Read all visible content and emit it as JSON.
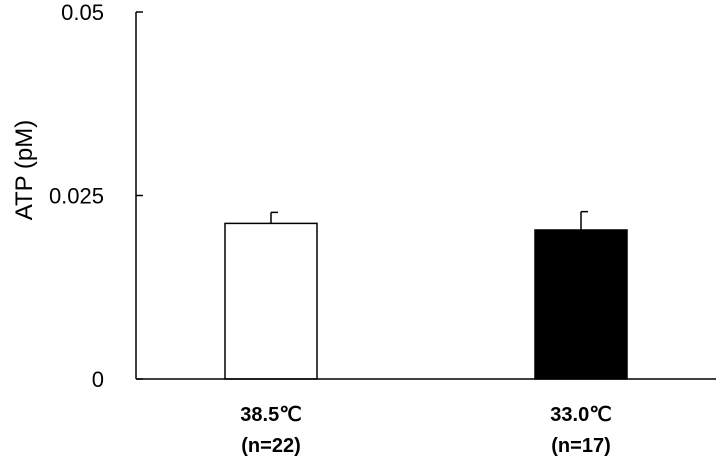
{
  "chart_data": {
    "type": "bar",
    "title": "",
    "xlabel": "",
    "ylabel": "ATP (pM)",
    "ylim": [
      0,
      0.05
    ],
    "yticks": [
      0,
      0.025,
      0.05
    ],
    "ytick_labels": [
      "0",
      "0.025",
      "0.05"
    ],
    "grid": false,
    "legend": "none",
    "categories": [
      {
        "line1": "38.5℃",
        "line2": "(n=22)"
      },
      {
        "line1": "33.0℃",
        "line2": "(n=17)"
      }
    ],
    "values": [
      0.0212,
      0.0203
    ],
    "errors": [
      0.0015,
      0.0025
    ],
    "colors": {
      "fills": [
        "#ffffff",
        "#000000"
      ],
      "stroke": "#000000"
    }
  }
}
